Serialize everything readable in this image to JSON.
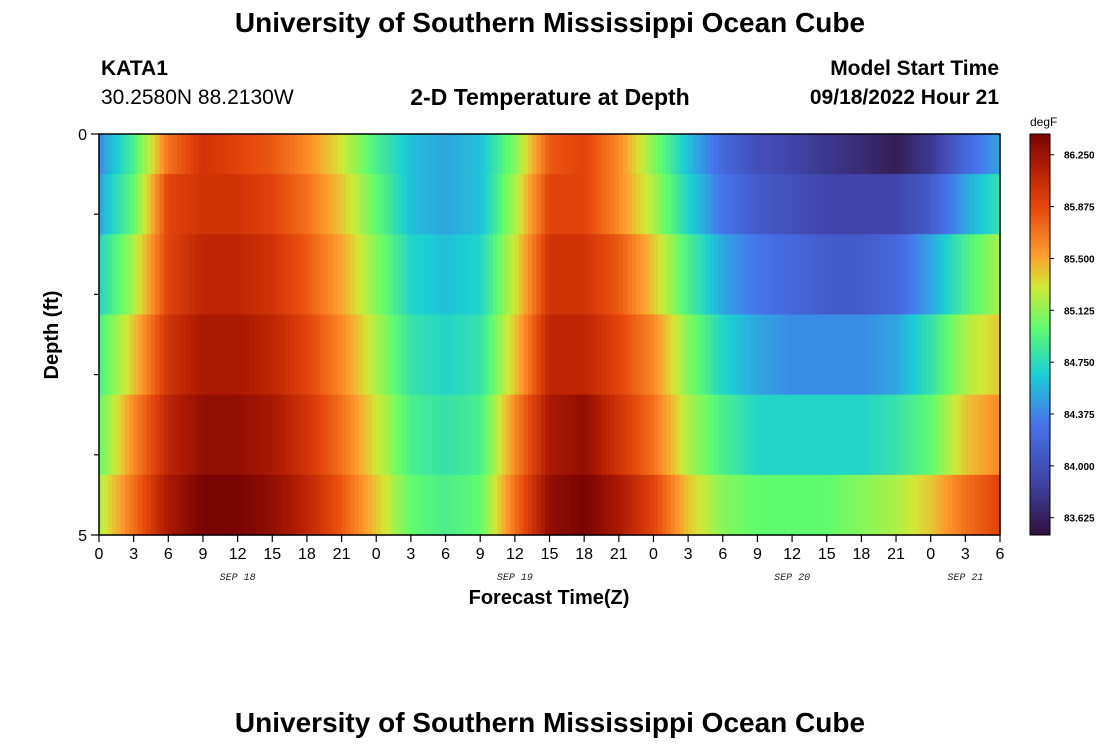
{
  "header": {
    "title": "University of Southern Mississippi Ocean Cube",
    "station": "KATA1",
    "coords": "30.2580N  88.2130W",
    "subtitle": "2-D Temperature at Depth",
    "start_label": "Model Start Time",
    "start_value": "09/18/2022 Hour 21"
  },
  "footer": {
    "title": "University of Southern Mississippi Ocean Cube"
  },
  "chart_data": {
    "type": "heatmap",
    "title": "2-D Temperature at Depth",
    "xlabel": "Forecast Time(Z)",
    "ylabel": "Depth (ft)",
    "units": "degF",
    "ylim": [
      0,
      5
    ],
    "y_tick_labels": [
      "0",
      "5"
    ],
    "x_tick_labels": [
      "0",
      "3",
      "6",
      "9",
      "12",
      "15",
      "18",
      "21",
      "0",
      "3",
      "6",
      "9",
      "12",
      "15",
      "18",
      "21",
      "0",
      "3",
      "6",
      "9",
      "12",
      "15",
      "18",
      "21",
      "0",
      "3",
      "6"
    ],
    "date_labels": [
      {
        "label": "SEP 18",
        "hour": 12
      },
      {
        "label": "SEP 19",
        "hour": 36
      },
      {
        "label": "SEP 20",
        "hour": 60
      },
      {
        "label": "SEP 21",
        "hour": 75
      }
    ],
    "time_hours": [
      0,
      3,
      6,
      9,
      12,
      15,
      18,
      21,
      24,
      27,
      30,
      33,
      36,
      39,
      42,
      45,
      48,
      51,
      54,
      57,
      60,
      63,
      66,
      69,
      72,
      75,
      78
    ],
    "depth_layers_ft": [
      0.25,
      0.75,
      1.75,
      2.75,
      3.75,
      4.75
    ],
    "values": [
      [
        84.4,
        84.9,
        85.7,
        86.0,
        85.9,
        85.8,
        85.6,
        85.3,
        84.9,
        84.6,
        84.5,
        84.6,
        85.1,
        85.8,
        85.9,
        85.6,
        85.1,
        84.6,
        84.2,
        84.0,
        83.9,
        83.8,
        83.7,
        83.6,
        83.8,
        84.2,
        84.5
      ],
      [
        84.5,
        85.0,
        85.9,
        86.0,
        86.0,
        85.9,
        85.7,
        85.4,
        85.0,
        84.6,
        84.5,
        84.6,
        85.2,
        85.9,
        85.9,
        85.6,
        85.2,
        84.7,
        84.3,
        84.1,
        84.0,
        83.9,
        83.9,
        83.9,
        84.1,
        84.5,
        84.8
      ],
      [
        84.7,
        85.2,
        85.9,
        86.1,
        86.1,
        86.0,
        85.8,
        85.5,
        85.1,
        84.7,
        84.6,
        84.7,
        85.3,
        86.0,
        86.0,
        85.8,
        85.4,
        84.9,
        84.5,
        84.3,
        84.2,
        84.1,
        84.1,
        84.2,
        84.5,
        84.9,
        85.2
      ],
      [
        84.9,
        85.4,
        86.0,
        86.2,
        86.2,
        86.1,
        85.9,
        85.6,
        85.2,
        84.8,
        84.7,
        84.8,
        85.4,
        86.1,
        86.1,
        85.9,
        85.6,
        85.1,
        84.7,
        84.5,
        84.4,
        84.4,
        84.4,
        84.5,
        84.8,
        85.2,
        85.4
      ],
      [
        85.0,
        85.6,
        86.1,
        86.3,
        86.3,
        86.2,
        86.0,
        85.7,
        85.3,
        84.9,
        84.8,
        84.9,
        85.6,
        86.2,
        86.3,
        86.0,
        85.7,
        85.2,
        84.9,
        84.7,
        84.7,
        84.7,
        84.7,
        84.8,
        85.0,
        85.4,
        85.6
      ],
      [
        85.2,
        85.7,
        86.2,
        86.4,
        86.4,
        86.3,
        86.1,
        85.8,
        85.4,
        85.0,
        84.9,
        85.0,
        85.7,
        86.3,
        86.4,
        86.2,
        85.9,
        85.4,
        85.1,
        85.0,
        85.0,
        85.0,
        85.1,
        85.2,
        85.4,
        85.7,
        85.9
      ]
    ],
    "colorbar": {
      "label": "degF",
      "min": 83.5,
      "max": 86.4,
      "tick_labels": [
        "83.625",
        "84.000",
        "84.375",
        "84.750",
        "85.125",
        "85.500",
        "85.875",
        "86.250"
      ],
      "tick_values": [
        83.625,
        84.0,
        84.375,
        84.75,
        85.125,
        85.5,
        85.875,
        86.25
      ]
    }
  }
}
